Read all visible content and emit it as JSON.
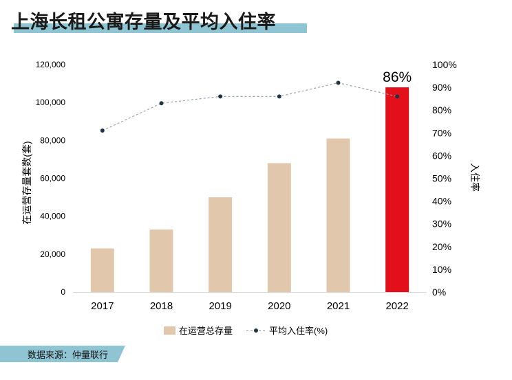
{
  "title": "上海长租公寓存量及平均入住率",
  "source": "数据来源：仲量联行",
  "colors": {
    "bar": "#e1c8ad",
    "highlight_bar": "#e3101c",
    "line": "#9aa3ab",
    "marker": "#1f3345",
    "title_accent": "#8fc4d3"
  },
  "chart_data": {
    "type": "bar",
    "categories": [
      "2017",
      "2018",
      "2019",
      "2020",
      "2021",
      "2022"
    ],
    "series": [
      {
        "name": "在运营总存量",
        "type": "bar",
        "axis": "left",
        "values": [
          23000,
          33000,
          50000,
          68000,
          81000,
          108000
        ]
      },
      {
        "name": "平均入住率(%)",
        "type": "line",
        "axis": "right",
        "values": [
          71,
          83,
          86,
          86,
          92,
          86
        ]
      }
    ],
    "highlight_index": 5,
    "annotation": "86%",
    "ylabel": "在运营存量套数(套)",
    "y2label": "入住率",
    "ylim": [
      0,
      120000
    ],
    "y2lim": [
      0,
      100
    ],
    "yticks": [
      "0",
      "20,000",
      "40,000",
      "60,000",
      "80,000",
      "100,000",
      "120,000"
    ],
    "y2ticks": [
      "0%",
      "10%",
      "20%",
      "30%",
      "40%",
      "50%",
      "60%",
      "70%",
      "80%",
      "90%",
      "100%"
    ],
    "legend_position": "bottom",
    "grid": false
  }
}
